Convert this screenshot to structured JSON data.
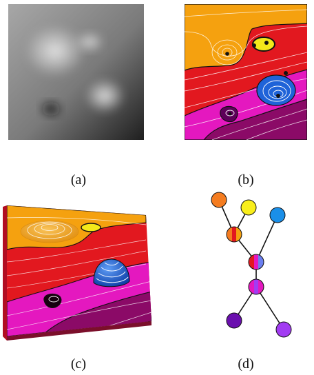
{
  "figure": {
    "captions": {
      "a": "(a)",
      "b": "(b)",
      "c": "(c)",
      "d": "(d)"
    }
  },
  "colors": {
    "orange": "#f5a10f",
    "red": "#e2181f",
    "magenta": "#e418bf",
    "purple": "#8b0a67",
    "yellow": "#f3e81a",
    "blue": "#1f63d8",
    "dark_purple": "#5d0059",
    "graph_orange": "#f47c20",
    "graph_yellow": "#f9ee1b",
    "graph_blue": "#1a8fe8",
    "graph_violet": "#6a0fae",
    "graph_lilac": "#a23cf2"
  }
}
